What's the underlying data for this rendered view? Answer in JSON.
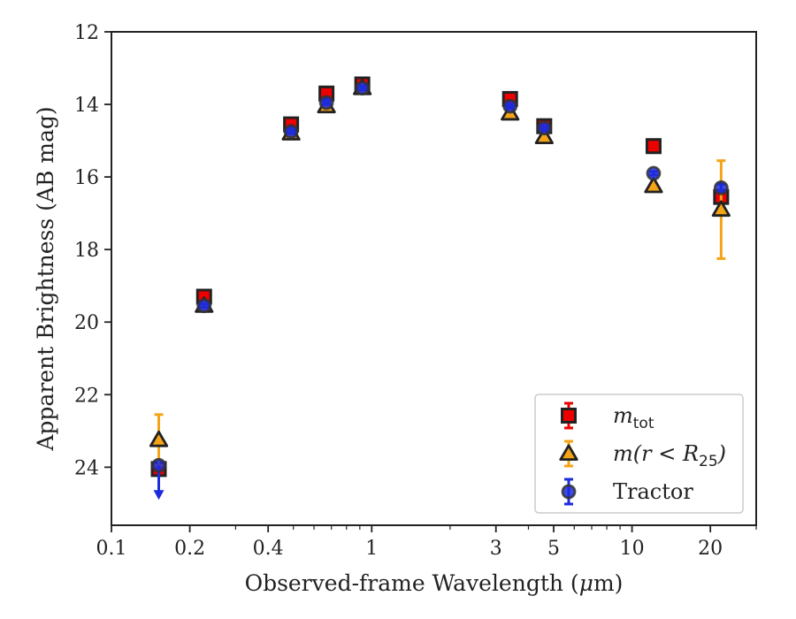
{
  "chart_data": {
    "type": "scatter",
    "xlabel": "Observed-frame Wavelength (μm)",
    "xlabel_parts": [
      "Observed-frame Wavelength (",
      "μ",
      "m)"
    ],
    "ylabel": "Apparent Brightness (AB mag)",
    "xscale": "log",
    "xlim": [
      0.1,
      30
    ],
    "ylim": [
      25.6,
      12
    ],
    "y_inverted": true,
    "grid": false,
    "legend_position": "lower-right",
    "x_ticks": [
      {
        "value": 0.1,
        "label": "0.1"
      },
      {
        "value": 0.2,
        "label": "0.2"
      },
      {
        "value": 0.4,
        "label": "0.4"
      },
      {
        "value": 1,
        "label": "1"
      },
      {
        "value": 3,
        "label": "3"
      },
      {
        "value": 5,
        "label": "5"
      },
      {
        "value": 10,
        "label": "10"
      },
      {
        "value": 20,
        "label": "20"
      }
    ],
    "y_ticks": [
      {
        "value": 12,
        "label": "12"
      },
      {
        "value": 14,
        "label": "14"
      },
      {
        "value": 16,
        "label": "16"
      },
      {
        "value": 18,
        "label": "18"
      },
      {
        "value": 20,
        "label": "20"
      },
      {
        "value": 22,
        "label": "22"
      },
      {
        "value": 24,
        "label": "24"
      }
    ],
    "series": [
      {
        "name": "m_tot",
        "legend": {
          "base": "m",
          "sub": "tot",
          "suffix": ""
        },
        "marker": "square",
        "color": "#ee0000",
        "edge_color": "#222222",
        "points": [
          {
            "x": 0.152,
            "y": 24.05,
            "yerr": 0
          },
          {
            "x": 0.227,
            "y": 19.3,
            "yerr": 0.05
          },
          {
            "x": 0.49,
            "y": 14.55,
            "yerr": 0.05
          },
          {
            "x": 0.67,
            "y": 13.7,
            "yerr": 0.05
          },
          {
            "x": 0.92,
            "y": 13.45,
            "yerr": 0.05
          },
          {
            "x": 3.4,
            "y": 13.85,
            "yerr": 0.05
          },
          {
            "x": 4.6,
            "y": 14.6,
            "yerr": 0.05
          },
          {
            "x": 12.1,
            "y": 15.15,
            "yerr": 0.05
          },
          {
            "x": 22,
            "y": 16.55,
            "yerr": 0.1
          }
        ]
      },
      {
        "name": "m(r<R25)",
        "legend": {
          "base": "m(r < R",
          "sub": "25",
          "suffix": ")"
        },
        "marker": "triangle",
        "color": "#f5a418",
        "edge_color": "#222222",
        "points": [
          {
            "x": 0.152,
            "y": 23.25,
            "yerr": 0.7
          },
          {
            "x": 0.227,
            "y": 19.55,
            "yerr": 0.05
          },
          {
            "x": 0.49,
            "y": 14.8,
            "yerr": 0.05
          },
          {
            "x": 0.67,
            "y": 14.05,
            "yerr": 0.05
          },
          {
            "x": 0.92,
            "y": 13.55,
            "yerr": 0.05
          },
          {
            "x": 3.4,
            "y": 14.25,
            "yerr": 0.05
          },
          {
            "x": 4.6,
            "y": 14.9,
            "yerr": 0.05
          },
          {
            "x": 12.1,
            "y": 16.25,
            "yerr": 0.05
          },
          {
            "x": 22,
            "y": 16.9,
            "yerr": 1.35
          }
        ]
      },
      {
        "name": "Tractor",
        "legend": {
          "base": "Tractor",
          "sub": "",
          "suffix": ""
        },
        "marker": "circle",
        "color": "#1e2bdc",
        "edge_color": "#333333",
        "points": [
          {
            "x": 0.152,
            "y": 23.95,
            "yerr": 0,
            "upper_limit": true
          },
          {
            "x": 0.227,
            "y": 19.55,
            "yerr": 0.05
          },
          {
            "x": 0.49,
            "y": 14.75,
            "yerr": 0.05
          },
          {
            "x": 0.67,
            "y": 13.95,
            "yerr": 0.05
          },
          {
            "x": 0.92,
            "y": 13.55,
            "yerr": 0.05
          },
          {
            "x": 3.4,
            "y": 14.05,
            "yerr": 0.05
          },
          {
            "x": 4.6,
            "y": 14.65,
            "yerr": 0.05
          },
          {
            "x": 12.1,
            "y": 15.9,
            "yerr": 0.05
          },
          {
            "x": 22,
            "y": 16.3,
            "yerr": 0.1
          }
        ]
      }
    ]
  }
}
